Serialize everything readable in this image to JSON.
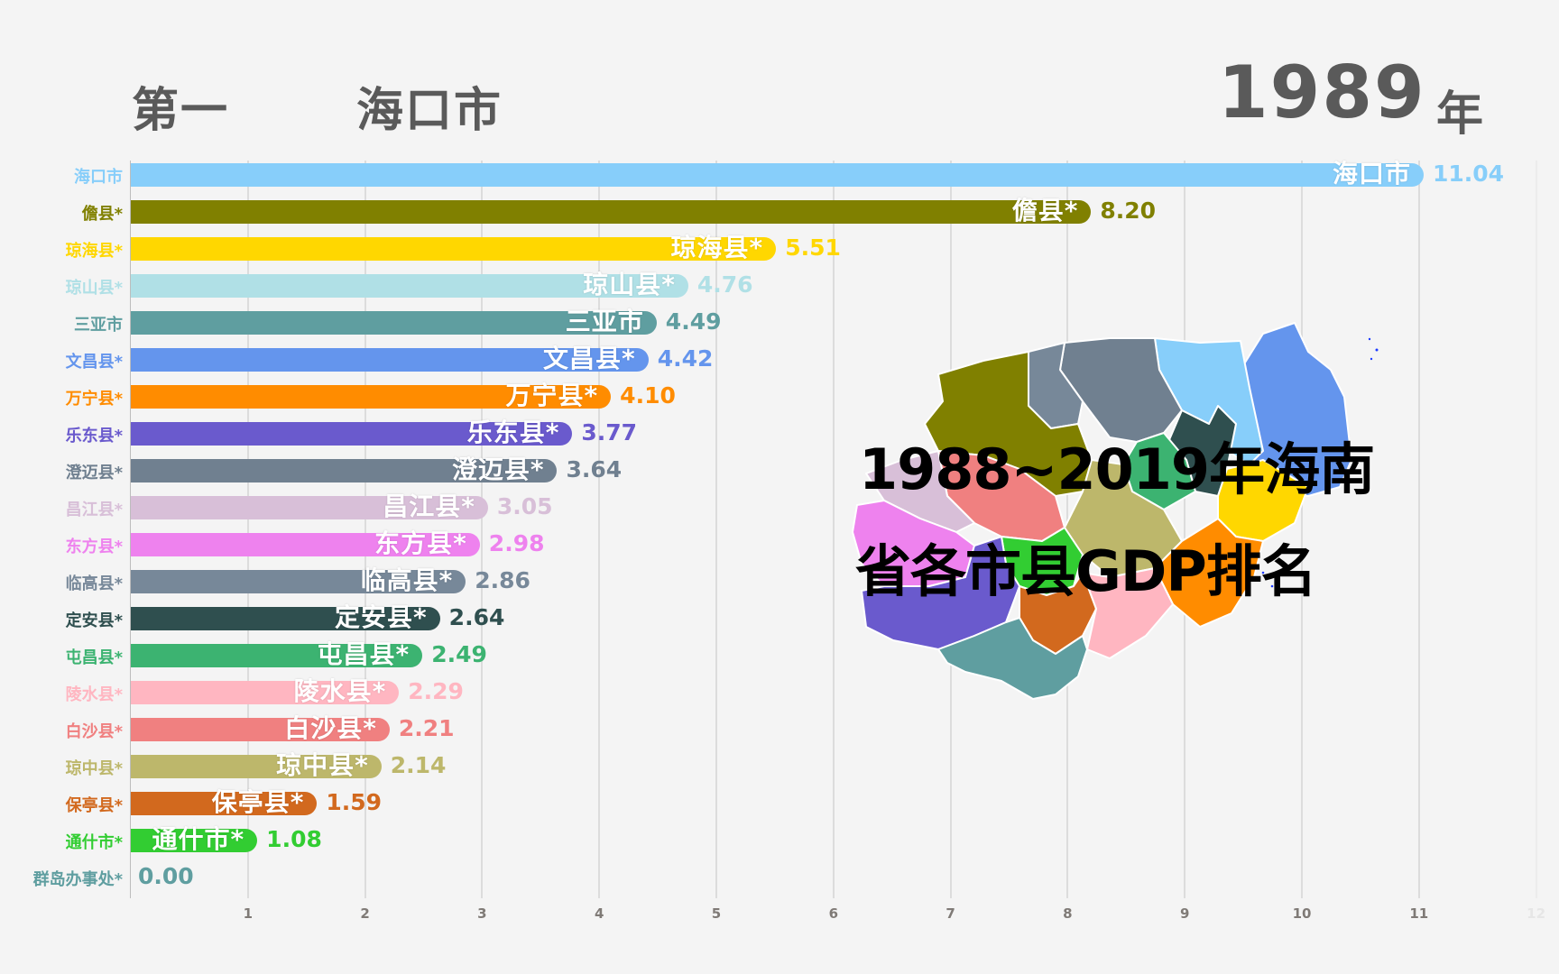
{
  "header": {
    "rank_label": "第一",
    "leader_name": "海口市",
    "year": "1989",
    "year_unit": "年"
  },
  "overlay_title": {
    "line1": "1988~2019年海南",
    "line2": "省各市县GDP排名"
  },
  "chart_data": {
    "type": "bar",
    "orientation": "horizontal",
    "title": "1988~2019年海南省各市县GDP排名",
    "subtitle": "1989 年",
    "xlabel": "",
    "ylabel": "",
    "xlim": [
      0,
      12
    ],
    "x_ticks": [
      "1",
      "2",
      "3",
      "4",
      "5",
      "6",
      "7",
      "8",
      "9",
      "10",
      "11",
      "12"
    ],
    "grid": true,
    "legend": "none",
    "categories": [
      "海口市",
      "儋县*",
      "琼海县*",
      "琼山县*",
      "三亚市",
      "文昌县*",
      "万宁县*",
      "乐东县*",
      "澄迈县*",
      "昌江县*",
      "东方县*",
      "临高县*",
      "定安县*",
      "屯昌县*",
      "陵水县*",
      "白沙县*",
      "琼中县*",
      "保亭县*",
      "通什市*",
      "群岛办事处*"
    ],
    "values": [
      11.04,
      8.2,
      5.51,
      4.76,
      4.49,
      4.42,
      4.1,
      3.77,
      3.64,
      3.05,
      2.98,
      2.86,
      2.64,
      2.49,
      2.29,
      2.21,
      2.14,
      1.59,
      1.08,
      0.0
    ],
    "value_labels": [
      "11.04",
      "8.20",
      "5.51",
      "4.76",
      "4.49",
      "4.42",
      "4.10",
      "3.77",
      "3.64",
      "3.05",
      "2.98",
      "2.86",
      "2.64",
      "2.49",
      "2.29",
      "2.21",
      "2.14",
      "1.59",
      "1.08",
      "0.00"
    ],
    "colors": [
      "#87cefa",
      "#808000",
      "#ffd700",
      "#b0e0e6",
      "#5f9ea0",
      "#6495ed",
      "#ff8c00",
      "#6a5acd",
      "#708090",
      "#d8bfd8",
      "#ee82ee",
      "#778899",
      "#2f4f4f",
      "#3cb371",
      "#ffb6c1",
      "#f08080",
      "#bdb76b",
      "#d2691e",
      "#32cd32",
      "#5f9ea0"
    ]
  },
  "map": {
    "description": "海南省行政区划着色地图",
    "regions": [
      {
        "name": "海口市",
        "color": "#87cefa"
      },
      {
        "name": "文昌县*",
        "color": "#6495ed"
      },
      {
        "name": "儋县*",
        "color": "#808000"
      },
      {
        "name": "临高县*",
        "color": "#778899"
      },
      {
        "name": "澄迈县*",
        "color": "#708090"
      },
      {
        "name": "定安县*",
        "color": "#2f4f4f"
      },
      {
        "name": "琼海县*",
        "color": "#ffd700"
      },
      {
        "name": "屯昌县*",
        "color": "#3cb371"
      },
      {
        "name": "琼中县*",
        "color": "#bdb76b"
      },
      {
        "name": "白沙县*",
        "color": "#f08080"
      },
      {
        "name": "昌江县*",
        "color": "#d8bfd8"
      },
      {
        "name": "东方县*",
        "color": "#ee82ee"
      },
      {
        "name": "乐东县*",
        "color": "#6a5acd"
      },
      {
        "name": "通什市*",
        "color": "#32cd32"
      },
      {
        "name": "保亭县*",
        "color": "#d2691e"
      },
      {
        "name": "陵水县*",
        "color": "#ffb6c1"
      },
      {
        "name": "万宁县*",
        "color": "#ff8c00"
      },
      {
        "name": "三亚市",
        "color": "#5f9ea0"
      }
    ]
  }
}
